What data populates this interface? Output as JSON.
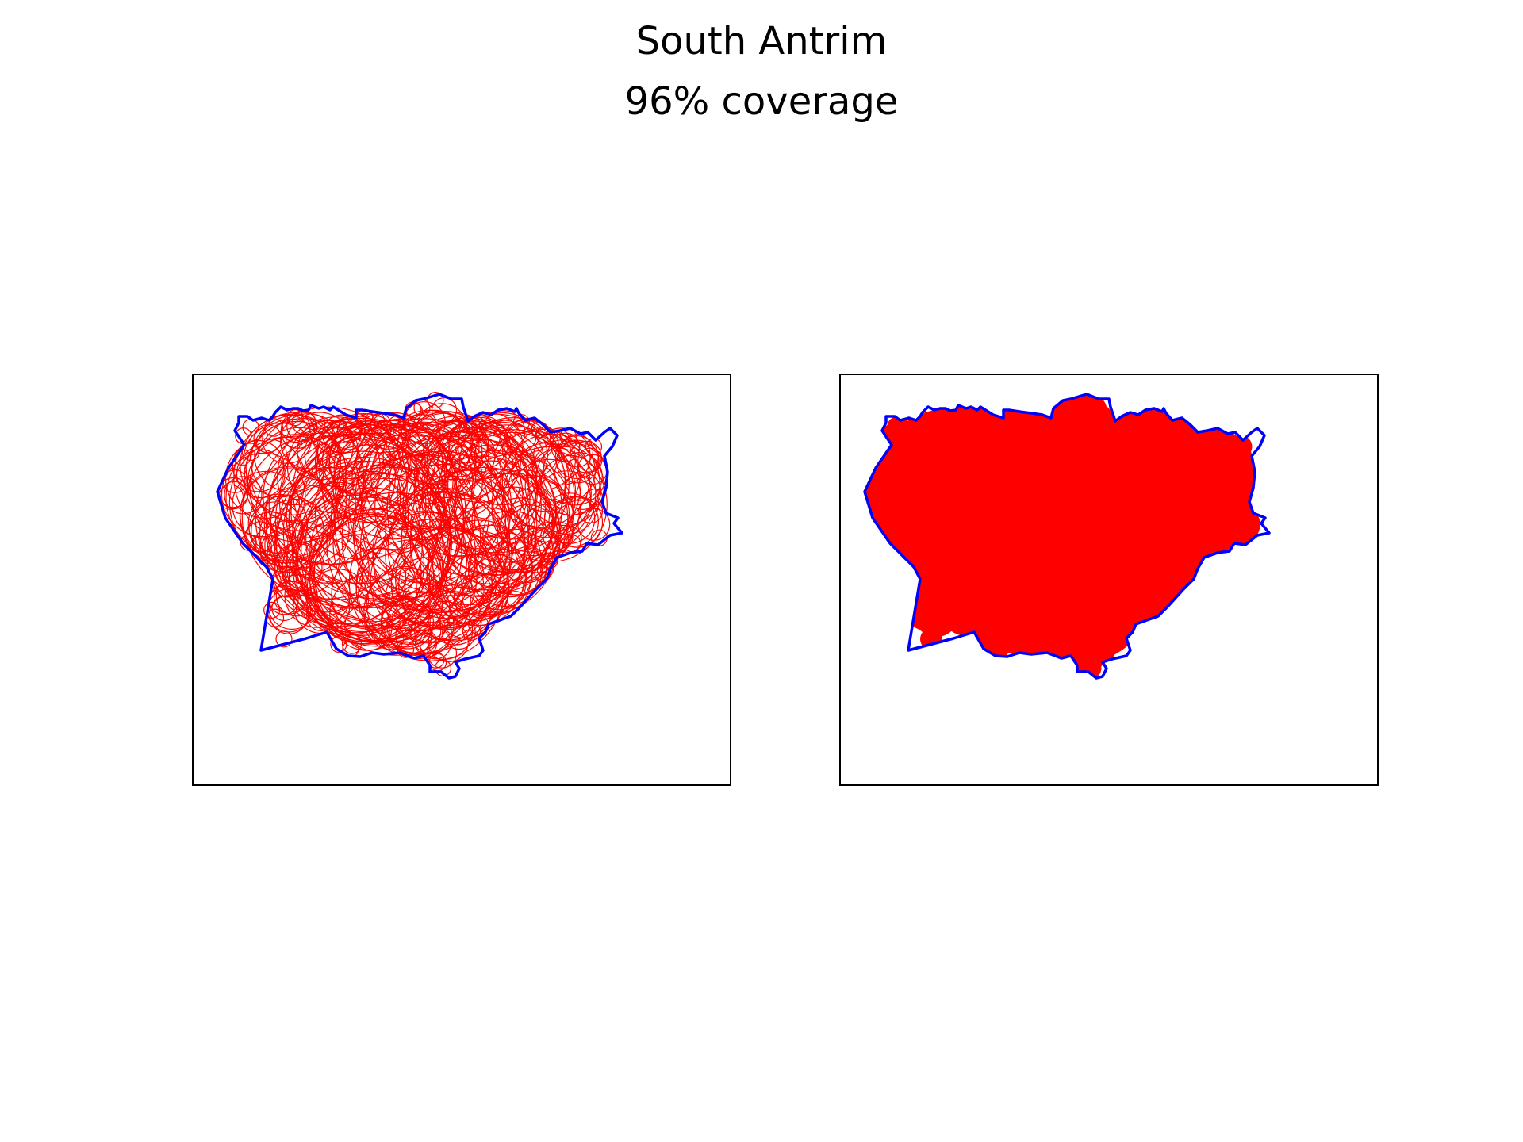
{
  "figure": {
    "title": "South Antrim",
    "subtitle": "96% coverage",
    "coverage_percent": 96
  },
  "colors": {
    "boundary": "#0000ff",
    "circles": "#ff0000",
    "coverage_fill": "#ff0000",
    "frame": "#000000",
    "background": "#ffffff"
  },
  "panels": [
    {
      "name": "circle-packing",
      "style": "outline-circles"
    },
    {
      "name": "coverage-union",
      "style": "filled-coverage"
    }
  ]
}
